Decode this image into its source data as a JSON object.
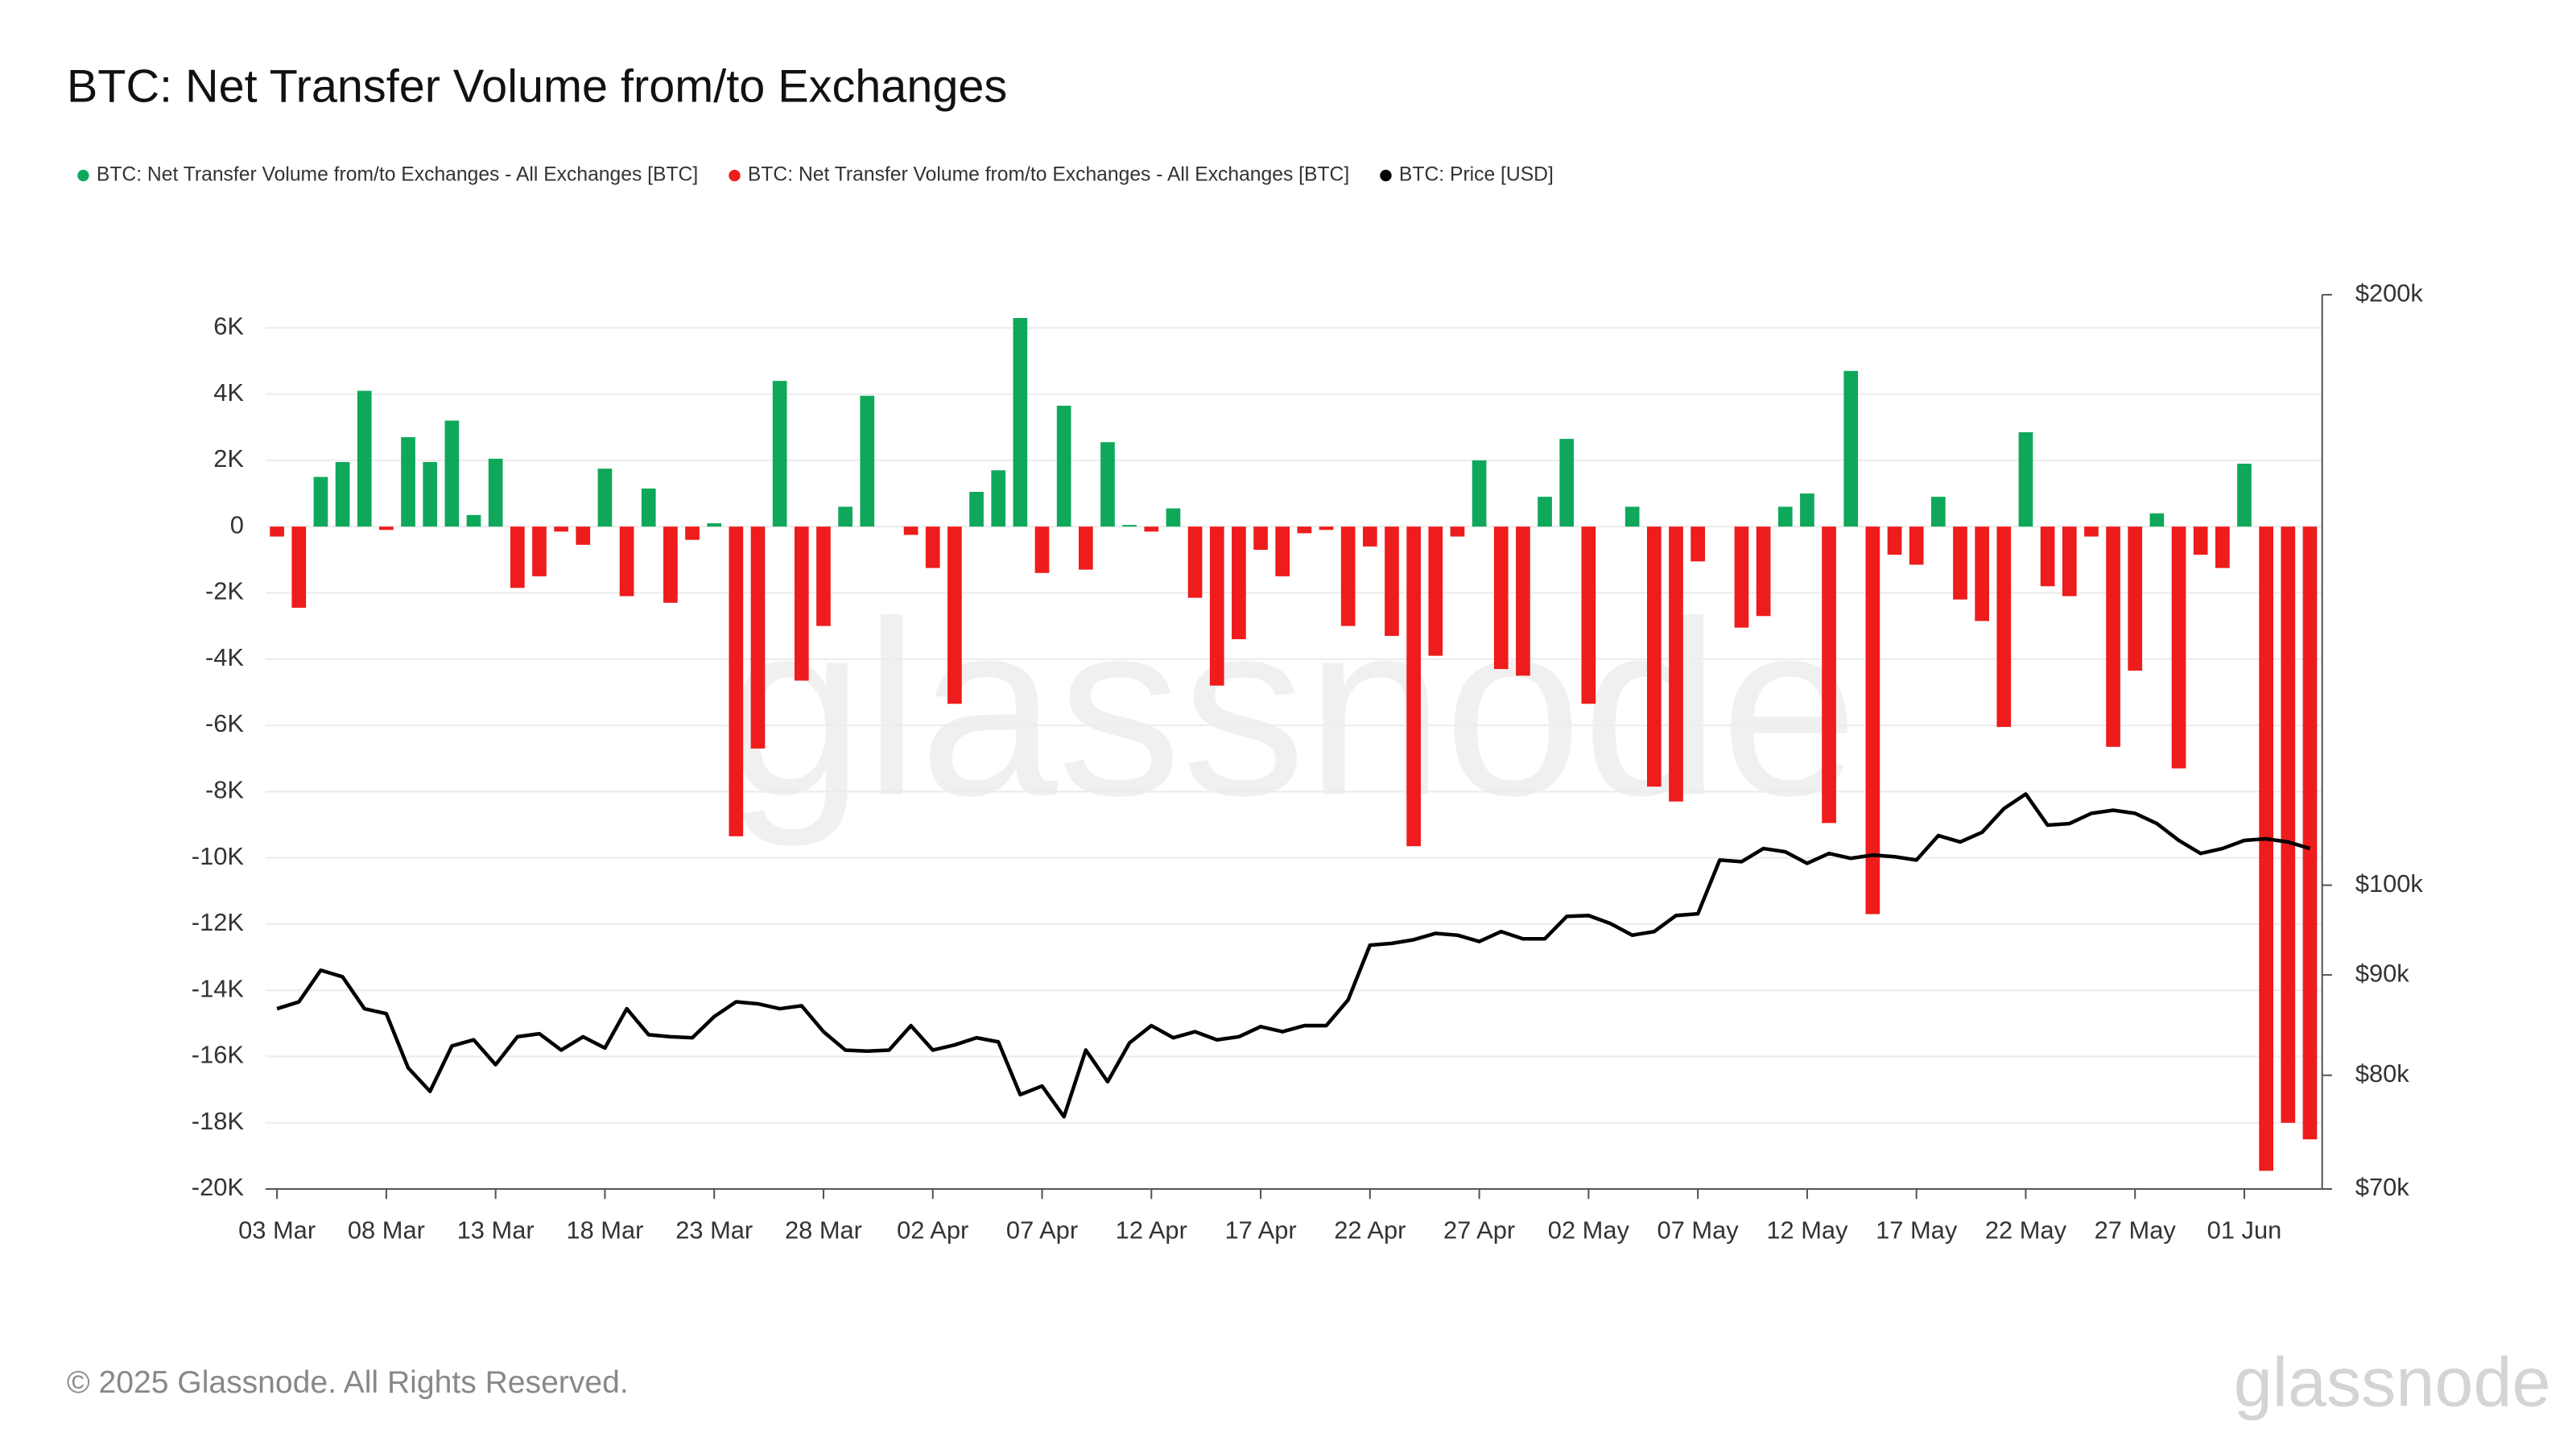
{
  "chart_data": {
    "type": "bar",
    "title": "BTC: Net Transfer Volume from/to Exchanges",
    "copyright": "© 2025 Glassnode. All Rights Reserved.",
    "logo": "glassnode",
    "categories": [
      "03 Mar",
      null,
      null,
      null,
      null,
      "08 Mar",
      null,
      null,
      null,
      null,
      "13 Mar",
      null,
      null,
      null,
      null,
      "18 Mar",
      null,
      null,
      null,
      null,
      "23 Mar",
      null,
      null,
      null,
      null,
      "28 Mar",
      null,
      null,
      null,
      null,
      "02 Apr",
      null,
      null,
      null,
      null,
      "07 Apr",
      null,
      null,
      null,
      null,
      "12 Apr",
      null,
      null,
      null,
      null,
      "17 Apr",
      null,
      null,
      null,
      null,
      "22 Apr",
      null,
      null,
      null,
      null,
      "27 Apr",
      null,
      null,
      null,
      null,
      "02 May",
      null,
      null,
      null,
      null,
      "07 May",
      null,
      null,
      null,
      null,
      "12 May",
      null,
      null,
      null,
      null,
      "17 May",
      null,
      null,
      null,
      null,
      "22 May",
      null,
      null,
      null,
      null,
      "27 May",
      null,
      null,
      null,
      null,
      "01 Jun",
      null,
      null,
      null
    ],
    "series": [
      {
        "name": "BTC: Net Transfer Volume from/to Exchanges - All Exchanges [BTC]",
        "color": "#0fa85b",
        "values": [
          null,
          null,
          1500,
          1950,
          4100,
          null,
          2700,
          1950,
          3200,
          350,
          2050,
          null,
          null,
          null,
          null,
          1750,
          null,
          1150,
          null,
          null,
          100,
          null,
          null,
          4400,
          null,
          null,
          600,
          3950,
          null,
          null,
          null,
          null,
          1050,
          1700,
          6300,
          null,
          3650,
          null,
          2550,
          50,
          null,
          550,
          null,
          null,
          null,
          null,
          null,
          null,
          null,
          null,
          null,
          null,
          null,
          null,
          null,
          2000,
          null,
          null,
          900,
          2650,
          null,
          null,
          600,
          null,
          null,
          null,
          null,
          null,
          null,
          600,
          1000,
          null,
          4700,
          null,
          null,
          null,
          900,
          null,
          null,
          null,
          2850,
          null,
          null,
          null,
          null,
          null,
          400,
          null,
          null,
          null,
          1900,
          null,
          null,
          null
        ]
      },
      {
        "name": "BTC: Net Transfer Volume from/to Exchanges - All Exchanges [BTC]",
        "color": "#ee1c1c",
        "values": [
          -300,
          -2450,
          null,
          null,
          null,
          -100,
          null,
          null,
          null,
          null,
          null,
          -1850,
          -1500,
          -150,
          -550,
          null,
          -2100,
          null,
          -2300,
          -400,
          null,
          -9350,
          -6700,
          null,
          -4650,
          -3000,
          null,
          null,
          0,
          -250,
          -1250,
          -5350,
          null,
          null,
          null,
          -1400,
          null,
          -1300,
          null,
          null,
          -150,
          null,
          -2150,
          -4800,
          -3400,
          -700,
          -1500,
          -200,
          -100,
          -3000,
          -600,
          -3300,
          -9650,
          -3900,
          -300,
          null,
          -4300,
          -4500,
          null,
          null,
          -5350,
          0,
          null,
          -7850,
          -8300,
          -1050,
          0,
          -3050,
          -2700,
          null,
          null,
          -8950,
          null,
          -11700,
          -850,
          -1150,
          null,
          -2200,
          -2850,
          -6050,
          null,
          -1800,
          -2100,
          -300,
          -6650,
          -4350,
          null,
          -7300,
          -850,
          -1250,
          null,
          -19450,
          -18000,
          -18500
        ]
      },
      {
        "name": "BTC: Price [USD]",
        "color": "#000000",
        "axis": "y2",
        "values": [
          86500,
          87200,
          90500,
          89800,
          86500,
          86000,
          80700,
          78500,
          82800,
          83400,
          81000,
          83700,
          84000,
          82400,
          83700,
          82600,
          86500,
          83900,
          83700,
          83600,
          85700,
          87200,
          87000,
          86500,
          86800,
          84200,
          82400,
          82300,
          82400,
          84800,
          82400,
          82900,
          83600,
          83200,
          78200,
          79000,
          76200,
          82400,
          79400,
          83100,
          84800,
          83600,
          84200,
          83400,
          83700,
          84700,
          84200,
          84800,
          84800,
          87400,
          93200,
          93400,
          93800,
          94500,
          94300,
          93600,
          94700,
          93900,
          93900,
          96400,
          96500,
          95600,
          94300,
          94700,
          96500,
          96700,
          103000,
          102800,
          104400,
          104000,
          102600,
          103800,
          103200,
          103600,
          103400,
          103000,
          106000,
          105200,
          106400,
          109400,
          111300,
          107300,
          107500,
          108800,
          109200,
          108800,
          107500,
          105400,
          103800,
          104400,
          105400,
          105600,
          105200,
          104400
        ]
      }
    ],
    "ylim": [
      -20000,
      7000
    ],
    "yticks": [
      {
        "value": 6000,
        "label": "6K"
      },
      {
        "value": 4000,
        "label": "4K"
      },
      {
        "value": 2000,
        "label": "2K"
      },
      0,
      {
        "value": -2000,
        "label": "-2K"
      },
      {
        "value": -4000,
        "label": "-4K"
      },
      {
        "value": -6000,
        "label": "-6K"
      },
      {
        "value": -8000,
        "label": "-8K"
      },
      {
        "value": -10000,
        "label": "-10K"
      },
      {
        "value": -12000,
        "label": "-12K"
      },
      {
        "value": -14000,
        "label": "-14K"
      },
      {
        "value": -16000,
        "label": "-16K"
      },
      {
        "value": -18000,
        "label": "-18K"
      },
      {
        "value": -20000,
        "label": "-20K"
      }
    ],
    "y2lim": [
      70000,
      200000
    ],
    "y2scale": "log",
    "y2ticks": [
      {
        "value": 200000,
        "label": "$200k"
      },
      {
        "value": 100000,
        "label": "$100k"
      },
      {
        "value": 90000,
        "label": "$90k"
      },
      {
        "value": 80000,
        "label": "$80k"
      },
      {
        "value": 70000,
        "label": "$70k"
      }
    ],
    "grid": true,
    "legend": "top-left"
  }
}
